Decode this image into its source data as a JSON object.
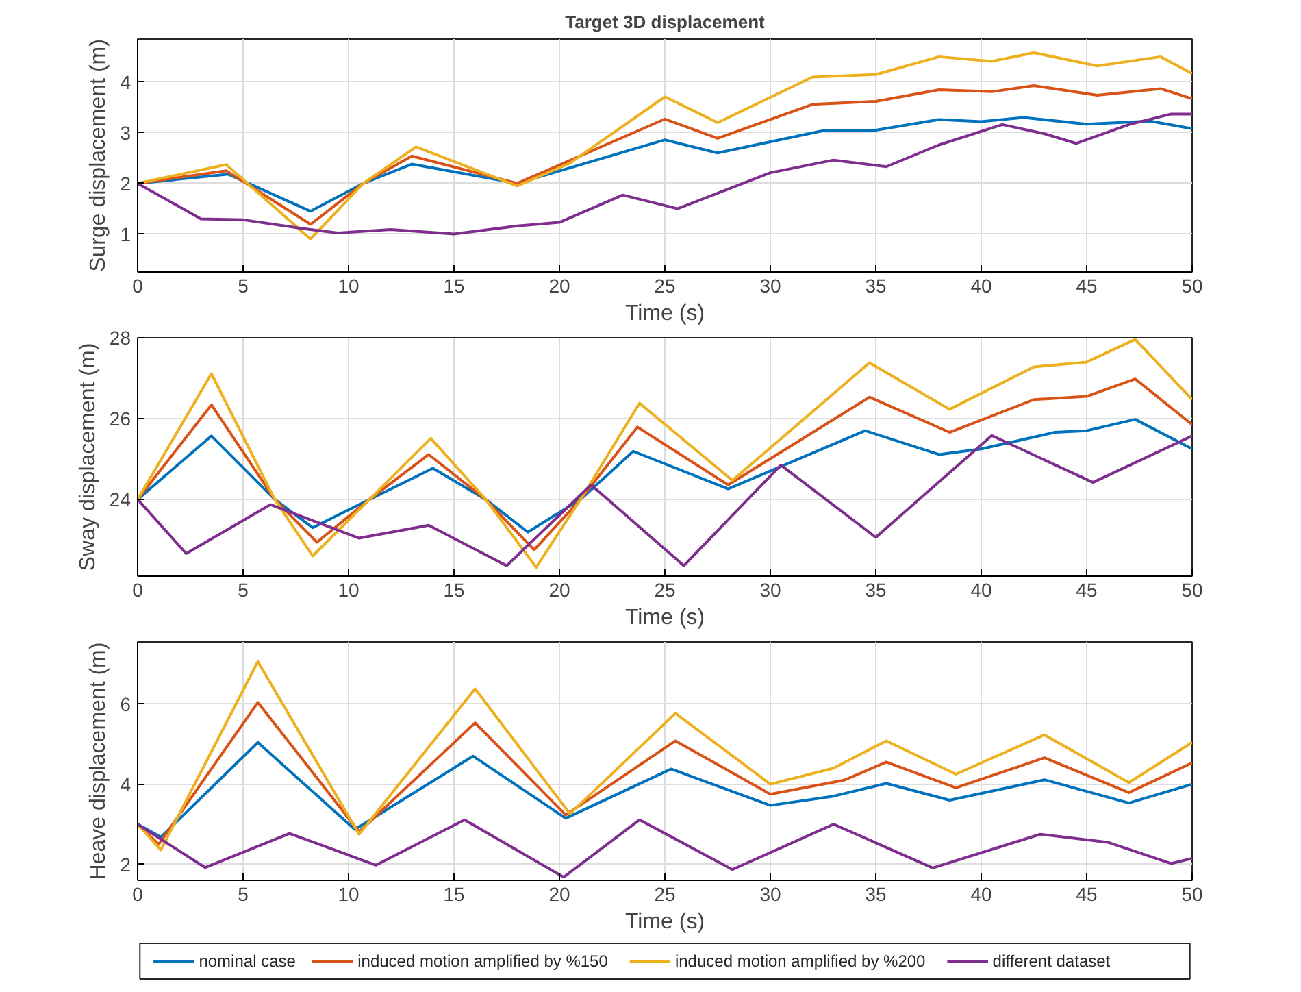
{
  "chart_data": [
    {
      "type": "line",
      "title": "Target 3D displacement",
      "xlabel": "Time (s)",
      "ylabel": "Surge displacement (m)",
      "xlim": [
        0,
        50
      ],
      "xticks": [
        0,
        5,
        10,
        15,
        20,
        25,
        30,
        35,
        40,
        45,
        50
      ],
      "ylim": [
        0.25,
        4.85
      ],
      "yticks": [
        1,
        2,
        3,
        4
      ],
      "grid": true,
      "series": [
        {
          "color": "#0072bd",
          "x": [
            0,
            4.3,
            8.2,
            10.7,
            13,
            18,
            25,
            27.5,
            32.5,
            35,
            38,
            40,
            42,
            45,
            48,
            50
          ],
          "values": [
            2,
            2.18,
            1.45,
            2,
            2.38,
            2,
            2.86,
            2.6,
            3.04,
            3.05,
            3.26,
            3.22,
            3.3,
            3.17,
            3.23,
            3.08
          ]
        },
        {
          "color": "#d95319",
          "x": [
            0,
            4.2,
            8.2,
            10.7,
            13,
            18,
            25,
            27.5,
            32,
            35,
            38,
            40.5,
            42.5,
            45.5,
            48.5,
            50
          ],
          "values": [
            2,
            2.25,
            1.19,
            2,
            2.54,
            2,
            3.27,
            2.89,
            3.56,
            3.62,
            3.85,
            3.81,
            3.93,
            3.74,
            3.87,
            3.67
          ]
        },
        {
          "color": "#edb120",
          "x": [
            0,
            4.2,
            8.2,
            10.7,
            13.2,
            18,
            20.5,
            25,
            27.5,
            32,
            35,
            38,
            40.5,
            42.5,
            45.5,
            48.5,
            50
          ],
          "values": [
            2,
            2.37,
            0.9,
            2,
            2.72,
            1.95,
            2.4,
            3.71,
            3.2,
            4.1,
            4.15,
            4.5,
            4.41,
            4.58,
            4.32,
            4.5,
            4.17
          ]
        },
        {
          "color": "#7e2f8e",
          "x": [
            0,
            3,
            5,
            8,
            9.5,
            12,
            15,
            18,
            20,
            23,
            25.6,
            30,
            33,
            35.5,
            38,
            41,
            43,
            44.5,
            47,
            49,
            50
          ],
          "values": [
            2,
            1.3,
            1.28,
            1.1,
            1.02,
            1.09,
            1.0,
            1.16,
            1.23,
            1.77,
            1.5,
            2.21,
            2.46,
            2.33,
            2.76,
            3.16,
            2.98,
            2.79,
            3.16,
            3.37,
            3.37
          ]
        }
      ]
    },
    {
      "type": "line",
      "xlabel": "Time (s)",
      "ylabel": "Sway displacement (m)",
      "xlim": [
        0,
        50
      ],
      "xticks": [
        0,
        5,
        10,
        15,
        20,
        25,
        30,
        35,
        40,
        45,
        50
      ],
      "ylim": [
        22.1,
        28
      ],
      "yticks": [
        24,
        26,
        28
      ],
      "grid": true,
      "series": [
        {
          "color": "#0072bd",
          "x": [
            0,
            3.5,
            6.5,
            8.3,
            11,
            14,
            16.5,
            18.5,
            21,
            23.5,
            28,
            34.5,
            38,
            40,
            43.5,
            45,
            47.3,
            50
          ],
          "values": [
            24,
            25.57,
            24,
            23.3,
            24,
            24.77,
            24,
            23.19,
            24,
            25.19,
            24.26,
            25.7,
            25.11,
            25.25,
            25.66,
            25.7,
            25.98,
            25.25
          ]
        },
        {
          "color": "#d95319",
          "x": [
            0,
            3.5,
            6.5,
            8.5,
            11,
            13.8,
            16.5,
            18.8,
            21,
            23.7,
            28,
            34.7,
            38.5,
            42.5,
            45,
            47.3,
            50
          ],
          "values": [
            24,
            26.34,
            24,
            22.94,
            24,
            25.11,
            24,
            22.75,
            24,
            25.79,
            24.36,
            26.53,
            25.66,
            26.47,
            26.55,
            26.98,
            25.85
          ]
        },
        {
          "color": "#edb120",
          "x": [
            0,
            3.5,
            6.5,
            8.3,
            11,
            13.9,
            16.5,
            18.9,
            21,
            23.8,
            28.2,
            34.7,
            38.5,
            42.5,
            45,
            47.3,
            50
          ],
          "values": [
            24,
            27.11,
            24,
            22.6,
            24,
            25.51,
            24,
            22.32,
            24,
            26.38,
            24.47,
            27.38,
            26.23,
            27.28,
            27.4,
            27.96,
            26.47
          ]
        },
        {
          "color": "#7e2f8e",
          "x": [
            0,
            2.3,
            6.3,
            10.5,
            13.8,
            17.5,
            21.5,
            25.9,
            30.5,
            35,
            40.5,
            45.3,
            50
          ],
          "values": [
            24,
            22.66,
            23.87,
            23.04,
            23.36,
            22.36,
            24.36,
            22.36,
            24.85,
            23.06,
            25.58,
            24.42,
            25.57
          ]
        }
      ]
    },
    {
      "type": "line",
      "xlabel": "Time (s)",
      "ylabel": "Heave displacement (m)",
      "xlim": [
        0,
        50
      ],
      "xticks": [
        0,
        5,
        10,
        15,
        20,
        25,
        30,
        35,
        40,
        45,
        50
      ],
      "ylim": [
        1.6,
        7.55
      ],
      "yticks": [
        2,
        4,
        6
      ],
      "grid": true,
      "legend": "bottom",
      "series": [
        {
          "name": "nominal case",
          "color": "#0072bd",
          "x": [
            0,
            1.1,
            5.7,
            10.3,
            15.9,
            20.3,
            25.3,
            30,
            33,
            35.5,
            38.5,
            43,
            47,
            50
          ],
          "values": [
            3.0,
            2.68,
            5.04,
            2.87,
            4.7,
            3.15,
            4.38,
            3.47,
            3.7,
            4.02,
            3.6,
            4.11,
            3.53,
            4.0
          ]
        },
        {
          "name": "induced motion amplified by %150",
          "color": "#d95319",
          "x": [
            0,
            1,
            5.7,
            10.5,
            16,
            20.3,
            25.5,
            30,
            33.5,
            35.5,
            38.8,
            43,
            47,
            50
          ],
          "values": [
            3.0,
            2.5,
            6.04,
            2.81,
            5.53,
            3.23,
            5.08,
            3.75,
            4.1,
            4.55,
            3.91,
            4.66,
            3.79,
            4.53
          ]
        },
        {
          "name": "induced motion amplified by %200",
          "color": "#edb120",
          "x": [
            0,
            1.1,
            5.7,
            10.5,
            16,
            20.5,
            25.5,
            30,
            33,
            35.5,
            38.8,
            43,
            47,
            50
          ],
          "values": [
            3.0,
            2.36,
            7.06,
            2.75,
            6.38,
            3.26,
            5.77,
            4.0,
            4.4,
            5.08,
            4.25,
            5.23,
            4.04,
            5.04
          ]
        },
        {
          "name": "different dataset",
          "color": "#7e2f8e",
          "x": [
            0,
            3.2,
            7.2,
            11.3,
            15.5,
            20.2,
            23.8,
            28.2,
            33,
            37.7,
            42.8,
            46,
            49,
            50
          ],
          "values": [
            3.0,
            1.92,
            2.77,
            1.98,
            3.11,
            1.68,
            3.11,
            1.87,
            3.0,
            1.91,
            2.75,
            2.55,
            2.02,
            2.15
          ]
        }
      ]
    }
  ]
}
